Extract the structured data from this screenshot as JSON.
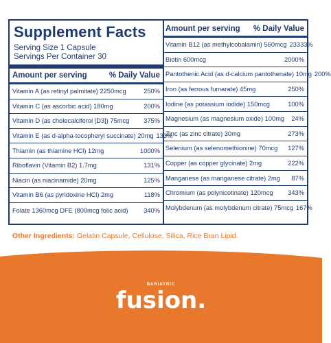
{
  "title": "Supplement Facts",
  "serving_size": "Serving Size 1 Capsule",
  "servings_per_container": "Servings Per Container 30",
  "header": {
    "amount": "Amount per serving",
    "dv": "% Daily Value"
  },
  "left_rows": [
    {
      "name": "Vitamin A (as retinyl palmitate) 2250mcg",
      "pct": "250%"
    },
    {
      "name": "Vitamin C (as ascorbic acid) 180mg",
      "pct": "200%"
    },
    {
      "name": "Vitamin D (as cholecalciferol [D3]) 75mcg",
      "pct": "375%"
    },
    {
      "name": "Vitamin E (as d-alpha-tocopheryl succinate) 20mg",
      "pct": "133%"
    },
    {
      "name": "Thiamin (as thiamine HCl) 12mg",
      "pct": "1000%"
    },
    {
      "name": "Riboflavin (Vitamin B2) 1.7mg",
      "pct": "131%"
    },
    {
      "name": "Niacin (as niacinamide) 20mg",
      "pct": "125%"
    },
    {
      "name": "Vitamin B6 (as pyridoxine HCl) 2mg",
      "pct": "118%"
    },
    {
      "name": "Folate 1360mcg DFE (800mcg folic acid)",
      "pct": "340%"
    }
  ],
  "right_rows": [
    {
      "name": "Vitamin B12 (as methylcobalamin) 560mcg",
      "pct": "23333%"
    },
    {
      "name": "Biotin 600mcg",
      "pct": "2000%"
    },
    {
      "name": "Pantothenic Acid (as d-calcium pantothenate) 10mg",
      "pct": "200%"
    },
    {
      "name": "Iron (as ferrous fumarate) 45mg",
      "pct": "250%"
    },
    {
      "name": "Iodine (as potassium iodide) 150mcg",
      "pct": "100%"
    },
    {
      "name": "Magnesium (as magnesium oxide) 100mg",
      "pct": "24%"
    },
    {
      "name": "Zinc (as zinc citrate) 30mg",
      "pct": "273%"
    },
    {
      "name": "Selenium (as selenomethionine) 70mcg",
      "pct": "127%"
    },
    {
      "name": "Copper (as copper glycinate) 2mg",
      "pct": "222%"
    },
    {
      "name": "Manganese (as manganese citrate) 2mg",
      "pct": "87%"
    },
    {
      "name": "Chromium (as polynicotinate) 120mcg",
      "pct": "343%"
    },
    {
      "name": "Molybdenum (as molybdenum citrate) 75mcg",
      "pct": "167%"
    }
  ],
  "other_ingredients_label": "Other Ingredients:",
  "other_ingredients": "Gelatin Capsule, Cellulose, Silica, Rice Bran Lipid.",
  "brand_sub": "BARIATRIC",
  "brand": "fusion.",
  "colors": {
    "navy": "#1f3a6f",
    "orange": "#e8782b"
  }
}
